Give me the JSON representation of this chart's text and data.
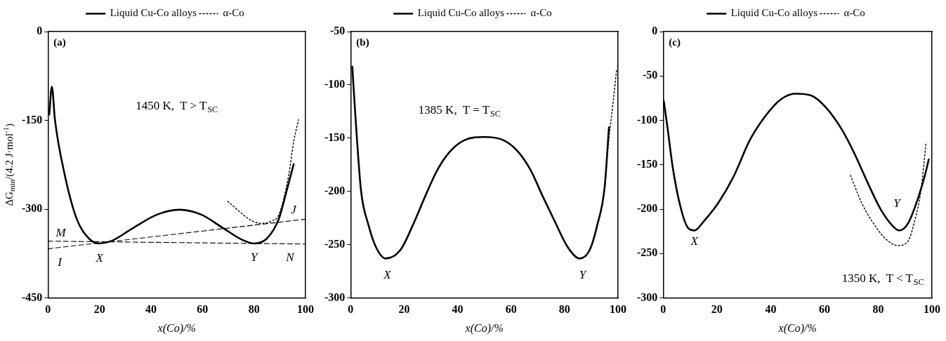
{
  "chart_data": [
    {
      "type": "line",
      "title": "(a)",
      "xlabel": "x(Co)/%",
      "ylabel": "ΔG$_{min}$/(4.2 J·mol$^{-1}$)",
      "xlim": [
        0,
        100
      ],
      "xticks": [
        0,
        20,
        40,
        60,
        80,
        100
      ],
      "ylim": [
        -450,
        0
      ],
      "yticks": [
        -450,
        -300,
        -150,
        0
      ],
      "grid": false,
      "legend": "top",
      "series": [
        {
          "name": "Liquid Cu-Co alloys",
          "color": "#000000",
          "line_style": "solid",
          "x": [
            0.5,
            1.5,
            2.7,
            6.5,
            11.2,
            16,
            19.8,
            24.5,
            33,
            42.5,
            51,
            59.4,
            68,
            75.5,
            80,
            84.9,
            89.6,
            92.5,
            95.4
          ],
          "values": [
            -140,
            -93,
            -149,
            -242,
            -317,
            -350,
            -358,
            -354,
            -332,
            -309,
            -301,
            -309,
            -332,
            -352,
            -358,
            -350,
            -317,
            -272,
            -224
          ]
        },
        {
          "name": "α-Co",
          "color": "#000000",
          "line_style": "dotted",
          "x": [
            69.8,
            79.3,
            83,
            86.9,
            89.7,
            93.5,
            95.4,
            97.3
          ],
          "values": [
            -287,
            -320,
            -324,
            -320,
            -309,
            -242,
            -186,
            -149
          ]
        },
        {
          "color": "#000000",
          "line_style": "dashed",
          "x": [
            0,
            100
          ],
          "values": [
            -354,
            -359
          ]
        },
        {
          "color": "#000000",
          "line_style": "dashed",
          "x": [
            0,
            100
          ],
          "values": [
            -367,
            -317
          ]
        }
      ],
      "annotations": [
        "1450 K,  T > T$_{SC}$",
        "M",
        "I",
        "X",
        "Y",
        "N",
        "J"
      ]
    },
    {
      "type": "line",
      "title": "(b)",
      "xlabel": "x(Co)/%",
      "xlim": [
        0,
        100
      ],
      "xticks": [
        0,
        20,
        40,
        60,
        80,
        100
      ],
      "ylim": [
        -300,
        -50
      ],
      "yticks": [
        -300,
        -250,
        -200,
        -150,
        -100,
        -50
      ],
      "grid": false,
      "legend": "top",
      "series": [
        {
          "name": "Liquid Cu-Co alloys",
          "color": "#000000",
          "line_style": "solid",
          "x": [
            0.6,
            2,
            3.9,
            6.6,
            9.4,
            13.1,
            18.6,
            23.2,
            27.8,
            32.4,
            37,
            42.5,
            49.9,
            57.2,
            62.7,
            67.3,
            71.9,
            76.5,
            81.1,
            85.7,
            89.4,
            92.2,
            95,
            96.6
          ],
          "values": [
            -83,
            -138,
            -200,
            -231,
            -252,
            -263,
            -255,
            -232,
            -205,
            -180,
            -163,
            -152,
            -149,
            -152,
            -163,
            -180,
            -205,
            -229,
            -252,
            -263,
            -255,
            -232,
            -196,
            -140
          ]
        },
        {
          "name": "α-Co",
          "color": "#000000",
          "line_style": "dotted",
          "x": [
            95,
            96.6,
            98,
            99.5
          ],
          "values": [
            -196,
            -150,
            -120,
            -85
          ]
        }
      ],
      "annotations": [
        "1385 K,  T = T$_{SC}$",
        "X",
        "Y"
      ]
    },
    {
      "type": "line",
      "title": "(c)",
      "xlabel": "x(Co)/%",
      "xlim": [
        0,
        100
      ],
      "xticks": [
        0,
        20,
        40,
        60,
        80,
        100
      ],
      "ylim": [
        -300,
        0
      ],
      "yticks": [
        -300,
        -250,
        -200,
        -150,
        -100,
        -50,
        0
      ],
      "grid": false,
      "legend": "top",
      "series": [
        {
          "name": "Liquid Cu-Co alloys",
          "color": "#000000",
          "line_style": "solid",
          "x": [
            0.2,
            1.6,
            3.5,
            6.4,
            9.2,
            11.6,
            15,
            20.7,
            26.4,
            32.1,
            37.8,
            43.5,
            49.2,
            55,
            60.7,
            66.4,
            71.1,
            75.9,
            80.7,
            85.4,
            87.8,
            91.1,
            94.9,
            97.8,
            98.8
          ],
          "values": [
            -78,
            -108,
            -152,
            -197,
            -221,
            -224,
            -214,
            -192,
            -162,
            -123,
            -96,
            -77,
            -70,
            -72,
            -86,
            -110,
            -137,
            -169,
            -199,
            -219,
            -224,
            -216,
            -187,
            -157,
            -144
          ]
        },
        {
          "name": "α-Co",
          "color": "#000000",
          "line_style": "dotted",
          "x": [
            69.7,
            74,
            77.8,
            82.6,
            87.3,
            91.1,
            93.5,
            95.9,
            97.8
          ],
          "values": [
            -162,
            -194,
            -214,
            -233,
            -241,
            -236,
            -214,
            -179,
            -125
          ]
        }
      ],
      "annotations": [
        "1350 K,  T < T$_{SC}$",
        "X",
        "Y"
      ]
    }
  ]
}
